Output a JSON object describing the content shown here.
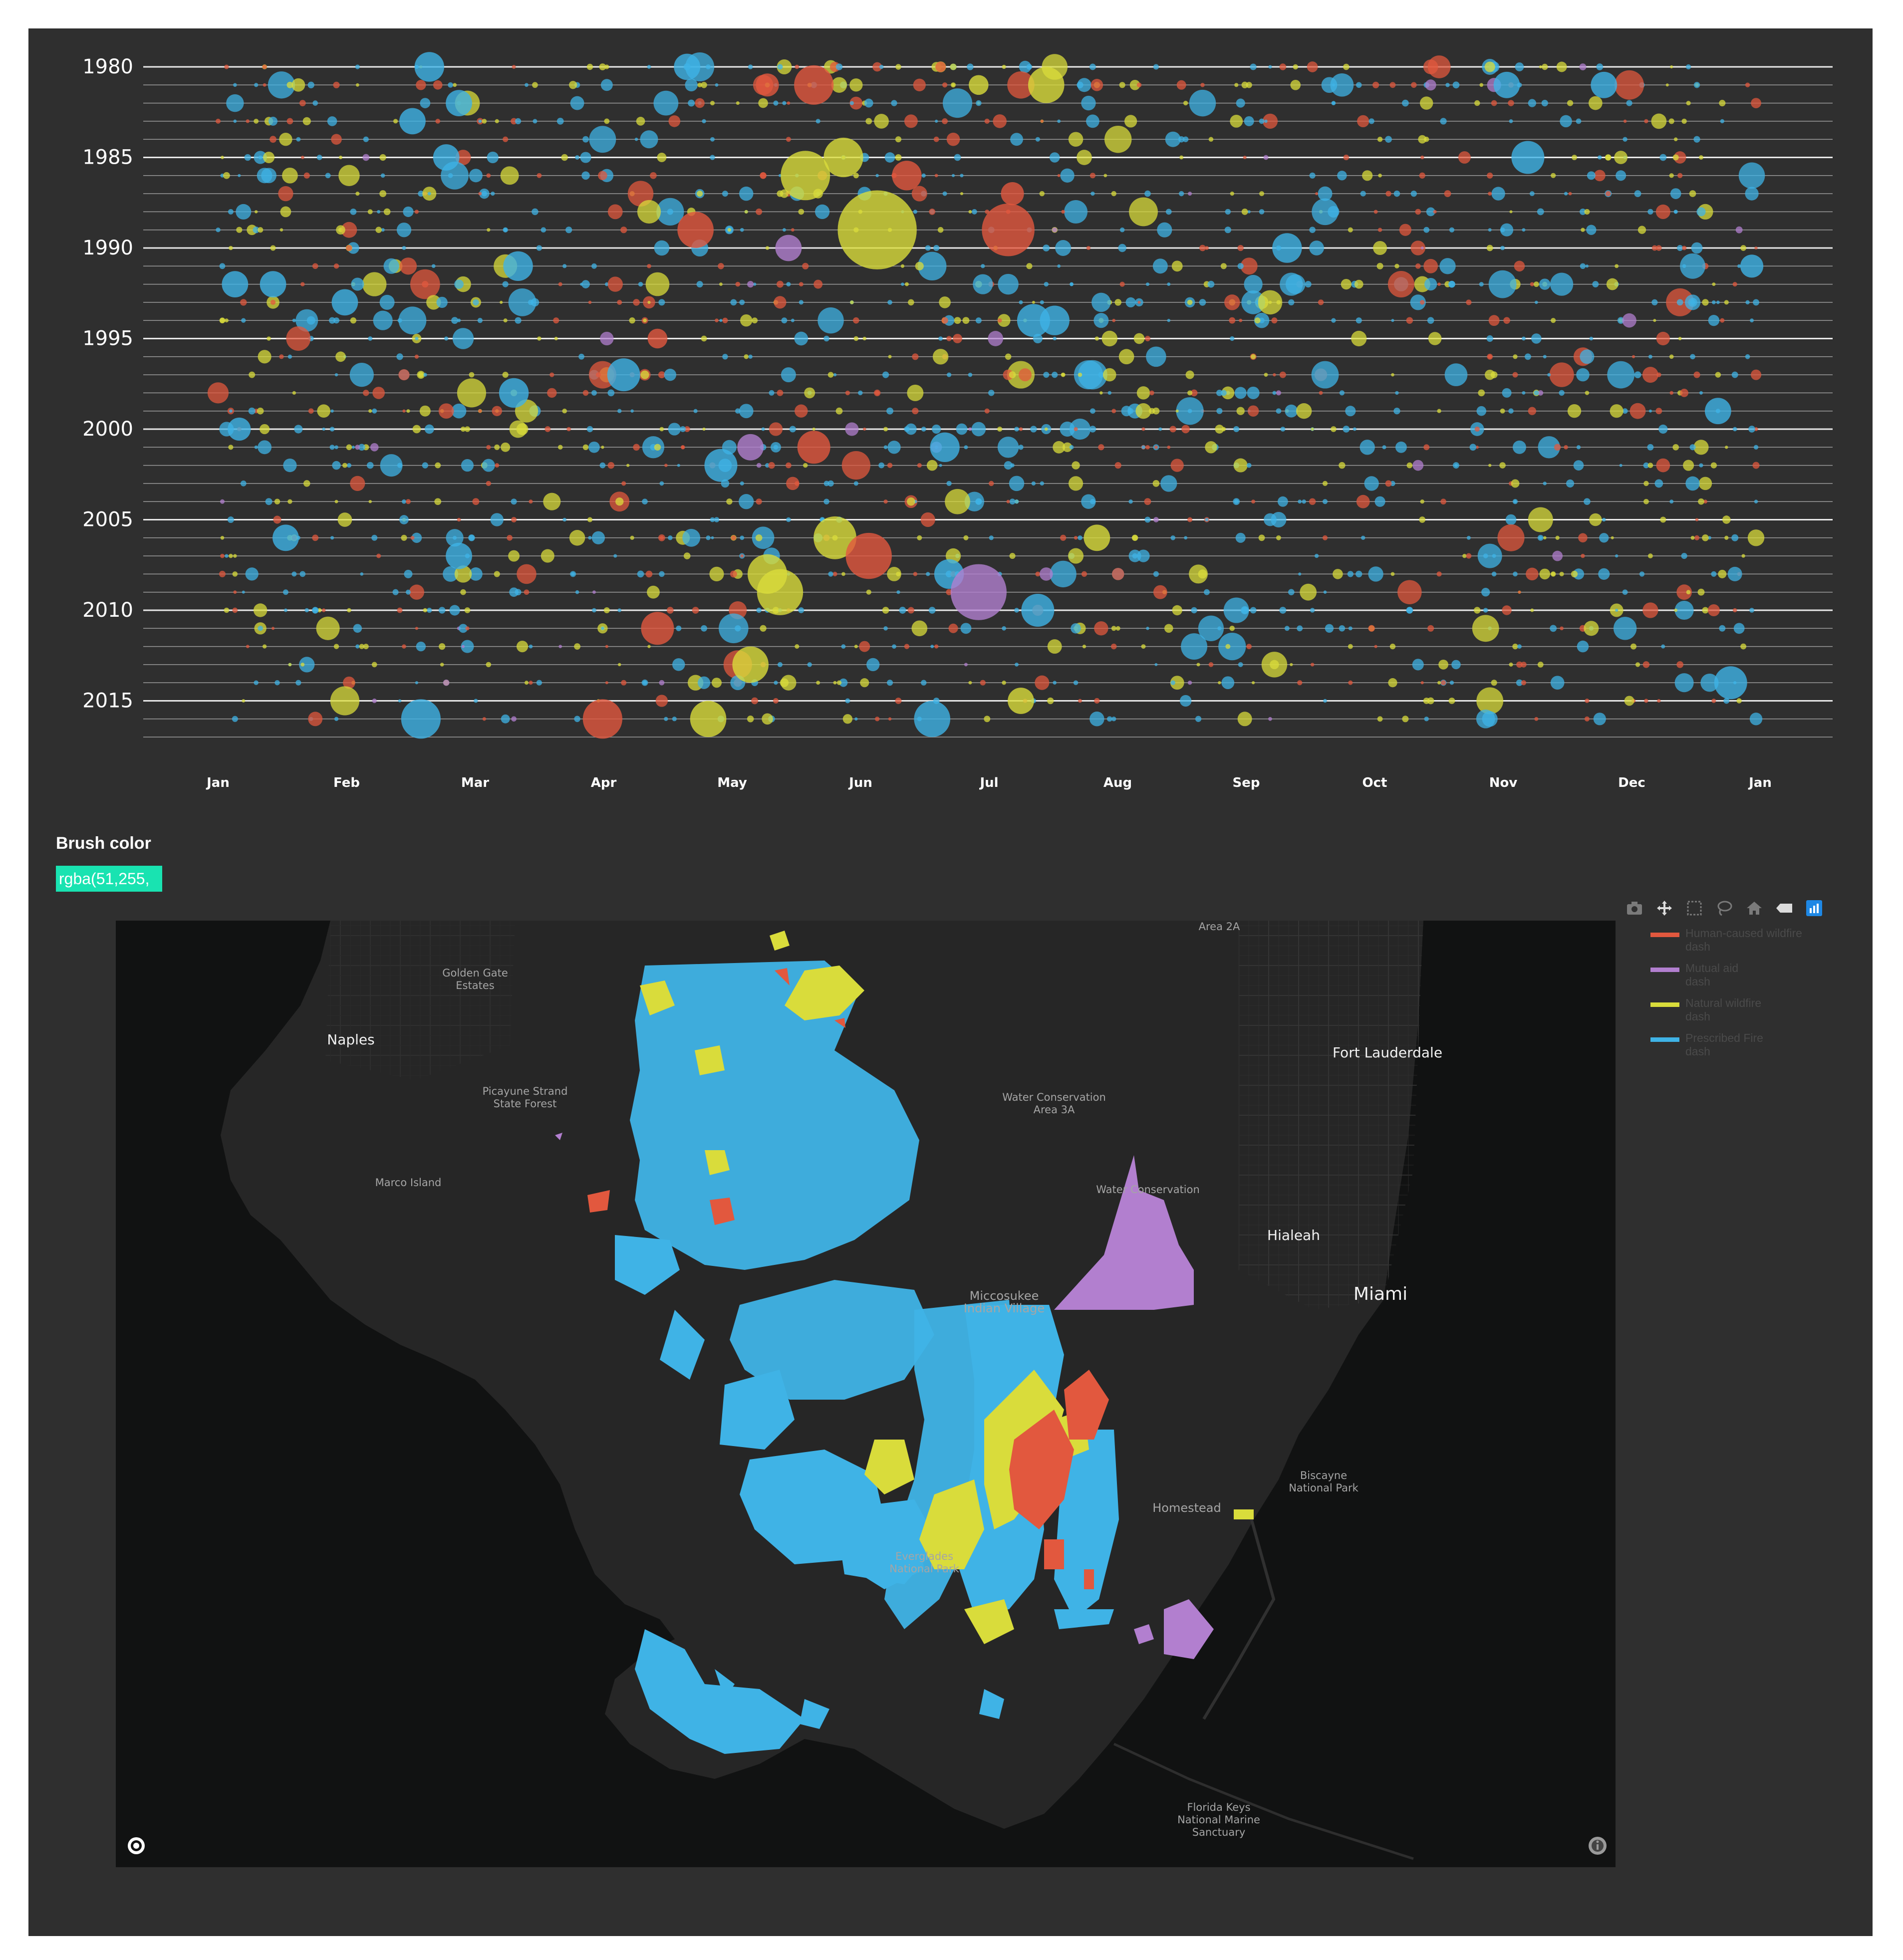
{
  "chart_data": {
    "type": "scatter",
    "title": "",
    "xlabel": "",
    "ylabel": "",
    "x_ticks": [
      "Jan",
      "Feb",
      "Mar",
      "Apr",
      "May",
      "Jun",
      "Jul",
      "Aug",
      "Sep",
      "Oct",
      "Nov",
      "Dec",
      "Jan"
    ],
    "y_ticks": [
      "1980",
      "1985",
      "1990",
      "1995",
      "2000",
      "2005",
      "2010",
      "2015"
    ],
    "ylim": [
      1980,
      2017
    ],
    "size_encoding": "burned acres",
    "series": [
      {
        "name": "Human-caused wildfire",
        "color": "#e2583e"
      },
      {
        "name": "Mutual aid",
        "color": "#b27fcf"
      },
      {
        "name": "Natural wildfire",
        "color": "#d9dc3b"
      },
      {
        "name": "Prescribed Fire",
        "color": "#3fb3e6"
      }
    ],
    "highlight_points": [
      {
        "year": 1980,
        "day": 50,
        "size": 9,
        "series": "Prescribed Fire"
      },
      {
        "year": 1980,
        "day": 111,
        "size": 8,
        "series": "Prescribed Fire"
      },
      {
        "year": 1981,
        "day": 141,
        "size": 12,
        "series": "Human-caused wildfire"
      },
      {
        "year": 1981,
        "day": 130,
        "size": 7,
        "series": "Human-caused wildfire"
      },
      {
        "year": 1981,
        "day": 180,
        "size": 6,
        "series": "Natural wildfire"
      },
      {
        "year": 1981,
        "day": 196,
        "size": 11,
        "series": "Natural wildfire"
      },
      {
        "year": 1981,
        "day": 305,
        "size": 8,
        "series": "Prescribed Fire"
      },
      {
        "year": 1981,
        "day": 328,
        "size": 8,
        "series": "Prescribed Fire"
      },
      {
        "year": 1982,
        "day": 57,
        "size": 8,
        "series": "Prescribed Fire"
      },
      {
        "year": 1983,
        "day": 46,
        "size": 8,
        "series": "Prescribed Fire"
      },
      {
        "year": 1985,
        "day": 54,
        "size": 8,
        "series": "Prescribed Fire"
      },
      {
        "year": 1985,
        "day": 310,
        "size": 10,
        "series": "Prescribed Fire"
      },
      {
        "year": 1985,
        "day": 148,
        "size": 12,
        "series": "Natural wildfire"
      },
      {
        "year": 1986,
        "day": 139,
        "size": 15,
        "series": "Natural wildfire"
      },
      {
        "year": 1986,
        "day": 163,
        "size": 9,
        "series": "Human-caused wildfire"
      },
      {
        "year": 1987,
        "day": 188,
        "size": 7,
        "series": "Human-caused wildfire"
      },
      {
        "year": 1989,
        "day": 156,
        "size": 24,
        "series": "Natural wildfire"
      },
      {
        "year": 1989,
        "day": 187,
        "size": 16,
        "series": "Human-caused wildfire"
      },
      {
        "year": 1989,
        "day": 113,
        "size": 11,
        "series": "Human-caused wildfire"
      },
      {
        "year": 1990,
        "day": 135,
        "size": 8,
        "series": "Mutual aid"
      },
      {
        "year": 1990,
        "day": 253,
        "size": 9,
        "series": "Prescribed Fire"
      },
      {
        "year": 1991,
        "day": 71,
        "size": 9,
        "series": "Prescribed Fire"
      },
      {
        "year": 1991,
        "day": 363,
        "size": 7,
        "series": "Prescribed Fire"
      },
      {
        "year": 1992,
        "day": 4,
        "size": 8,
        "series": "Prescribed Fire"
      },
      {
        "year": 1992,
        "day": 13,
        "size": 8,
        "series": "Prescribed Fire"
      },
      {
        "year": 1993,
        "day": 30,
        "size": 8,
        "series": "Prescribed Fire"
      },
      {
        "year": 1994,
        "day": 193,
        "size": 10,
        "series": "Prescribed Fire"
      },
      {
        "year": 1994,
        "day": 198,
        "size": 9,
        "series": "Prescribed Fire"
      },
      {
        "year": 1995,
        "day": 104,
        "size": 6,
        "series": "Human-caused wildfire"
      },
      {
        "year": 1997,
        "day": 96,
        "size": 10,
        "series": "Prescribed Fire"
      },
      {
        "year": 1998,
        "day": 70,
        "size": 9,
        "series": "Prescribed Fire"
      },
      {
        "year": 1999,
        "day": 355,
        "size": 8,
        "series": "Prescribed Fire"
      },
      {
        "year": 2000,
        "day": 5,
        "size": 7,
        "series": "Prescribed Fire"
      },
      {
        "year": 2001,
        "day": 126,
        "size": 8,
        "series": "Mutual aid"
      },
      {
        "year": 2001,
        "day": 141,
        "size": 10,
        "series": "Human-caused wildfire"
      },
      {
        "year": 2001,
        "day": 172,
        "size": 9,
        "series": "Prescribed Fire"
      },
      {
        "year": 2002,
        "day": 119,
        "size": 10,
        "series": "Prescribed Fire"
      },
      {
        "year": 2006,
        "day": 16,
        "size": 8,
        "series": "Prescribed Fire"
      },
      {
        "year": 2006,
        "day": 146,
        "size": 13,
        "series": "Natural wildfire"
      },
      {
        "year": 2006,
        "day": 208,
        "size": 8,
        "series": "Natural wildfire"
      },
      {
        "year": 2007,
        "day": 154,
        "size": 14,
        "series": "Human-caused wildfire"
      },
      {
        "year": 2007,
        "day": 57,
        "size": 8,
        "series": "Prescribed Fire"
      },
      {
        "year": 2008,
        "day": 130,
        "size": 12,
        "series": "Natural wildfire"
      },
      {
        "year": 2008,
        "day": 173,
        "size": 9,
        "series": "Prescribed Fire"
      },
      {
        "year": 2009,
        "day": 133,
        "size": 14,
        "series": "Natural wildfire"
      },
      {
        "year": 2009,
        "day": 180,
        "size": 17,
        "series": "Mutual aid"
      },
      {
        "year": 2010,
        "day": 194,
        "size": 10,
        "series": "Prescribed Fire"
      },
      {
        "year": 2011,
        "day": 104,
        "size": 10,
        "series": "Human-caused wildfire"
      },
      {
        "year": 2013,
        "day": 126,
        "size": 11,
        "series": "Natural wildfire"
      },
      {
        "year": 2014,
        "day": 358,
        "size": 10,
        "series": "Prescribed Fire"
      },
      {
        "year": 2015,
        "day": 190,
        "size": 8,
        "series": "Natural wildfire"
      },
      {
        "year": 2016,
        "day": 48,
        "size": 12,
        "series": "Prescribed Fire"
      },
      {
        "year": 2016,
        "day": 91,
        "size": 12,
        "series": "Human-caused wildfire"
      },
      {
        "year": 2016,
        "day": 116,
        "size": 11,
        "series": "Natural wildfire"
      },
      {
        "year": 2016,
        "day": 169,
        "size": 11,
        "series": "Prescribed Fire"
      }
    ]
  },
  "brush": {
    "label": "Brush color",
    "value": "rgba(51,255,"
  },
  "modebar": {
    "icons": [
      "camera-icon",
      "pan-icon",
      "box-select-icon",
      "lasso-icon",
      "home-icon",
      "hover-icon",
      "plotly-logo-icon"
    ]
  },
  "map": {
    "labels": {
      "area_2a": "Area 2A",
      "golden_gate_1": "Golden Gate",
      "golden_gate_2": "Estates",
      "naples": "Naples",
      "picayune_1": "Picayune Strand",
      "picayune_2": "State Forest",
      "marco_island": "Marco Island",
      "water_cons_3a_1": "Water Conservation",
      "water_cons_3a_2": "Area 3A",
      "water_cons_3b": "Water Conservation",
      "fort_lauderdale": "Fort Lauderdale",
      "hialeah": "Hialeah",
      "miami": "Miami",
      "miccosukee_1": "Miccosukee",
      "miccosukee_2": "Indian Village",
      "homestead": "Homestead",
      "biscayne_1": "Biscayne",
      "biscayne_2": "National Park",
      "everglades_1": "Everglades",
      "everglades_2": "National Park",
      "keys_1": "Florida Keys",
      "keys_2": "National Marine",
      "keys_3": "Sanctuary"
    },
    "colors": {
      "land": "#262626",
      "water": "#111212",
      "human": "#e2583e",
      "mutual": "#b27fcf",
      "natural": "#d9dc3b",
      "prescribed": "#3fb3e6"
    }
  },
  "legend": [
    {
      "name": "Human-caused wildfire",
      "sub": "dash",
      "color": "#e2583e"
    },
    {
      "name": "Mutual aid",
      "sub": "dash",
      "color": "#b27fcf"
    },
    {
      "name": "Natural wildfire",
      "sub": "dash",
      "color": "#d9dc3b"
    },
    {
      "name": "Prescribed Fire",
      "sub": "dash",
      "color": "#3fb3e6"
    }
  ]
}
